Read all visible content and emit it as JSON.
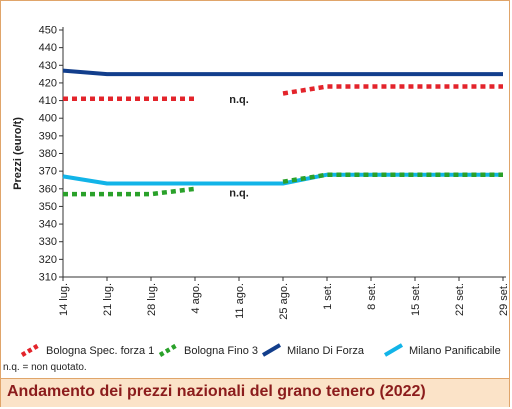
{
  "chart_data": {
    "type": "line",
    "title": "Andamento dei prezzi nazionali del grano tenero (2022)",
    "ylabel": "Prezzi (euro/t)",
    "xlabel": "",
    "ylim": [
      310,
      450
    ],
    "yticks": [
      310,
      320,
      330,
      340,
      350,
      360,
      370,
      380,
      390,
      400,
      410,
      420,
      430,
      440,
      450
    ],
    "categories": [
      "14 lug.",
      "21 lug.",
      "28 lug.",
      "4 ago.",
      "11 ago.",
      "25 ago.",
      "1 set.",
      "8 set.",
      "15 set.",
      "22 set.",
      "29 set."
    ],
    "grid": false,
    "legend_position": "bottom",
    "series": [
      {
        "name": "Bologna Spec. forza 1",
        "color": "#e3242b",
        "style": "dotted",
        "values": [
          411,
          411,
          411,
          411,
          null,
          414,
          418,
          418,
          418,
          418,
          418
        ]
      },
      {
        "name": "Bologna Fino 3",
        "color": "#2aa12a",
        "style": "dotted",
        "values": [
          357,
          357,
          357,
          360,
          null,
          364,
          368,
          368,
          368,
          368,
          368
        ]
      },
      {
        "name": "Milano Di Forza",
        "color": "#123e8c",
        "style": "solid",
        "values": [
          427,
          425,
          425,
          425,
          425,
          425,
          425,
          425,
          425,
          425,
          425
        ]
      },
      {
        "name": "Milano Panificabile",
        "color": "#12b4e8",
        "style": "solid",
        "values": [
          367,
          363,
          363,
          363,
          363,
          363,
          368,
          368,
          368,
          368,
          368
        ]
      }
    ],
    "annotations": [
      {
        "text": "n.q.",
        "x": "11 ago.",
        "y": 411
      },
      {
        "text": "n.q.",
        "x": "11 ago.",
        "y": 358
      }
    ]
  },
  "note": "n.q. = non quotato."
}
